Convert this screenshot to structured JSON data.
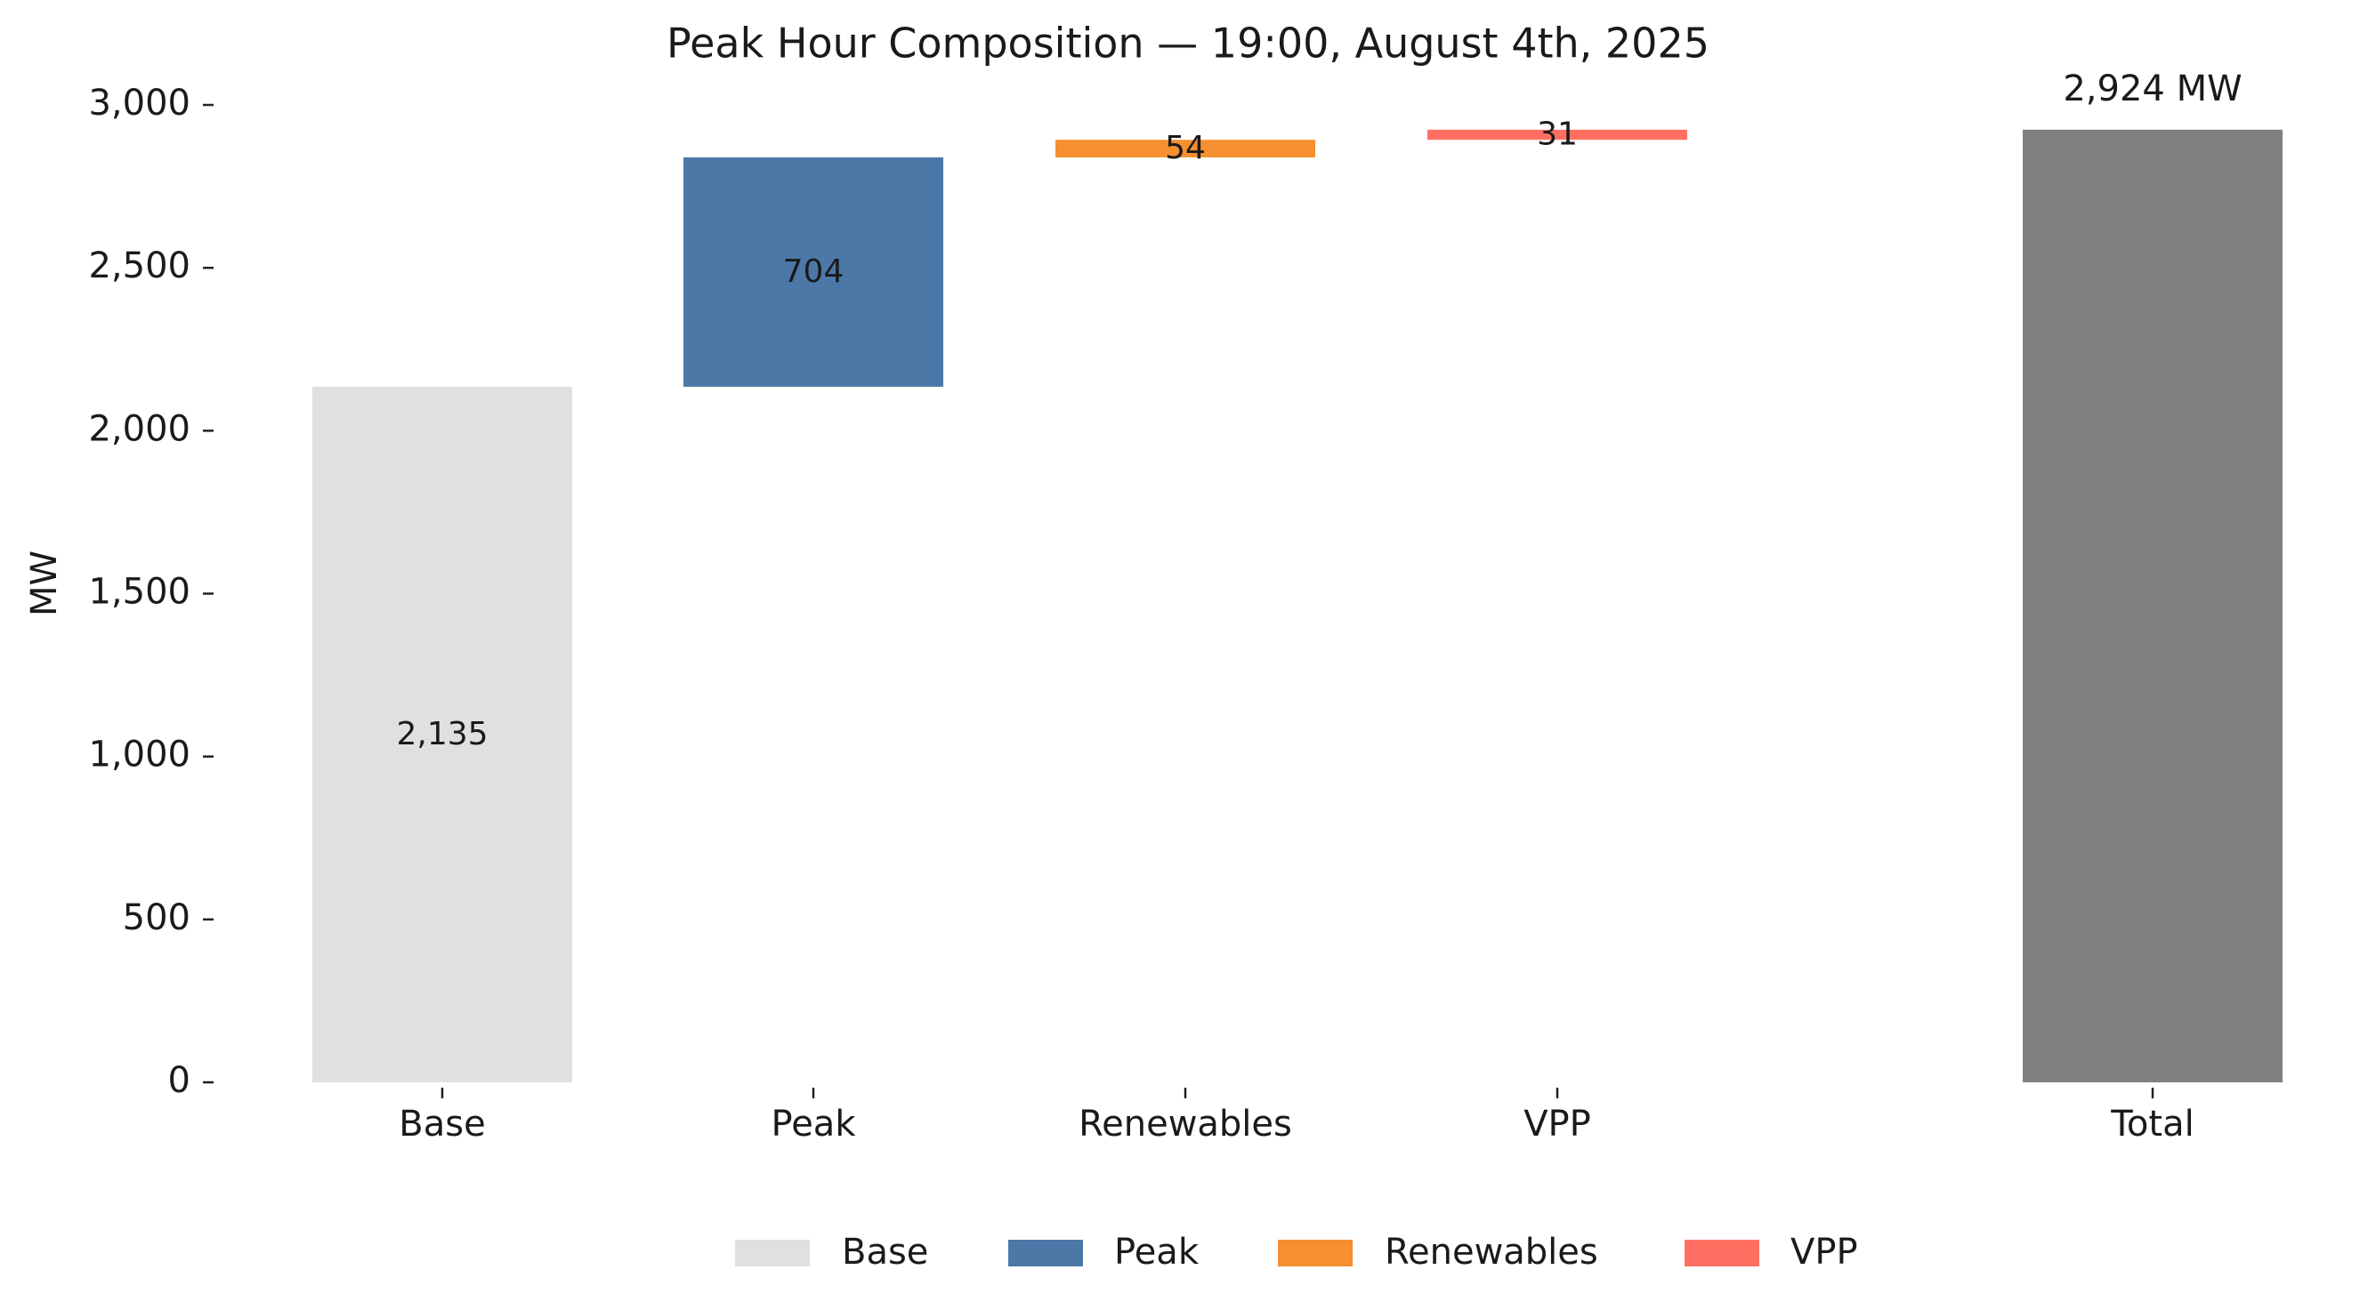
{
  "chart_data": {
    "type": "bar",
    "subtype": "waterfall",
    "title": "Peak Hour Composition — 19:00, August 4th, 2025",
    "xlabel": "",
    "ylabel": "MW",
    "ylim": [
      0,
      3000
    ],
    "yticks": [
      0,
      500,
      1000,
      1500,
      2000,
      2500,
      3000
    ],
    "ytick_labels": [
      "0",
      "500",
      "1,000",
      "1,500",
      "2,000",
      "2,500",
      "3,000"
    ],
    "grid": false,
    "legend_position": "bottom-center",
    "categories": [
      "Base",
      "Peak",
      "Renewables",
      "VPP",
      "Total"
    ],
    "steps": [
      {
        "name": "Base",
        "value": 2135,
        "label": "2,135",
        "color": "#e0e0e0"
      },
      {
        "name": "Peak",
        "value": 704,
        "label": "704",
        "color": "#4c78a8"
      },
      {
        "name": "Renewables",
        "value": 54,
        "label": "54",
        "color": "#f58f2f"
      },
      {
        "name": "VPP",
        "value": 31,
        "label": "31",
        "color": "#ff6f61"
      }
    ],
    "total": {
      "name": "Total",
      "value": 2924,
      "label": "2,924 MW",
      "color": "#808080"
    },
    "legend": [
      {
        "label": "Base",
        "color": "#e0e0e0"
      },
      {
        "label": "Peak",
        "color": "#4c78a8"
      },
      {
        "label": "Renewables",
        "color": "#f58f2f"
      },
      {
        "label": "VPP",
        "color": "#ff6f61"
      }
    ]
  }
}
